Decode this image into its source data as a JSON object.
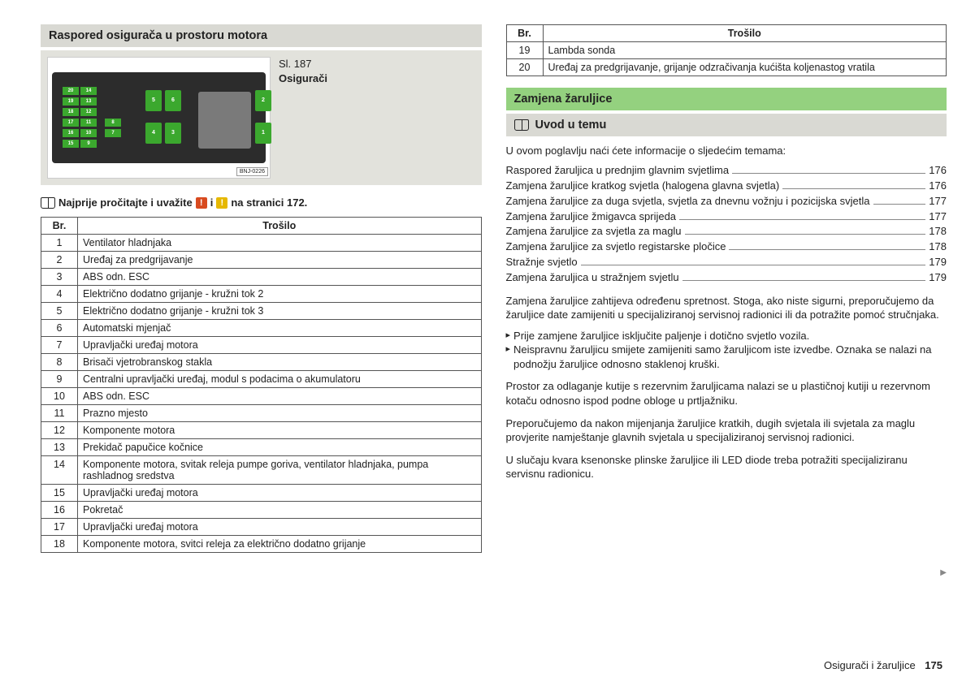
{
  "left": {
    "heading": "Raspored osigurača u prostoru motora",
    "figLabel": "Sl. 187",
    "figCaption": "Osigurači",
    "bnj": "BNJ-0226",
    "readFirst_a": "Najprije pročitajte i uvažite",
    "readFirst_b": "i",
    "readFirst_c": "na stranici 172.",
    "th_br": "Br.",
    "th_trosilo": "Trošilo",
    "rows": [
      {
        "n": "1",
        "t": "Ventilator hladnjaka"
      },
      {
        "n": "2",
        "t": "Uređaj za predgrijavanje"
      },
      {
        "n": "3",
        "t": "ABS odn. ESC"
      },
      {
        "n": "4",
        "t": "Električno dodatno grijanje - kružni tok 2"
      },
      {
        "n": "5",
        "t": "Električno dodatno grijanje - kružni tok 3"
      },
      {
        "n": "6",
        "t": "Automatski mjenjač"
      },
      {
        "n": "7",
        "t": "Upravljački uređaj motora"
      },
      {
        "n": "8",
        "t": "Brisači vjetrobranskog stakla"
      },
      {
        "n": "9",
        "t": "Centralni upravljački uređaj, modul s podacima o akumulatoru"
      },
      {
        "n": "10",
        "t": "ABS odn. ESC"
      },
      {
        "n": "11",
        "t": "Prazno mjesto"
      },
      {
        "n": "12",
        "t": "Komponente motora"
      },
      {
        "n": "13",
        "t": "Prekidač papučice kočnice"
      },
      {
        "n": "14",
        "t": "Komponente motora, svitak releja pumpe goriva, ventilator hladnjaka, pumpa rashladnog sredstva"
      },
      {
        "n": "15",
        "t": "Upravljački uređaj motora"
      },
      {
        "n": "16",
        "t": "Pokretač"
      },
      {
        "n": "17",
        "t": "Upravljački uređaj motora"
      },
      {
        "n": "18",
        "t": "Komponente motora, svitci releja za električno dodatno grijanje"
      }
    ],
    "fuse_numbers": [
      "20",
      "19",
      "18",
      "17",
      "16",
      "15",
      "14",
      "13",
      "12",
      "11",
      "10",
      "9",
      "8",
      "7",
      "5",
      "6",
      "4",
      "3",
      "2",
      "1"
    ]
  },
  "right": {
    "th_br": "Br.",
    "th_trosilo": "Trošilo",
    "rows": [
      {
        "n": "19",
        "t": "Lambda sonda"
      },
      {
        "n": "20",
        "t": "Uređaj za predgrijavanje, grijanje odzračivanja kućišta koljenastog vratila"
      }
    ],
    "heading": "Zamjena žaruljice",
    "sub": "Uvod u temu",
    "intro": "U ovom poglavlju naći ćete informacije o sljedećim temama:",
    "toc": [
      {
        "l": "Raspored žaruljica u prednjim glavnim svjetlima",
        "p": "176"
      },
      {
        "l": "Zamjena žaruljice kratkog svjetla (halogena glavna svjetla)",
        "p": "176"
      },
      {
        "l": "Zamjena žaruljice za duga svjetla, svjetla za dnevnu vožnju i pozicijska svjetla",
        "p": "177"
      },
      {
        "l": "Zamjena žaruljice žmigavca sprijeda",
        "p": "177"
      },
      {
        "l": "Zamjena žaruljice za svjetla za maglu",
        "p": "178"
      },
      {
        "l": "Zamjena žaruljice za svjetlo registarske pločice",
        "p": "178"
      },
      {
        "l": "Stražnje svjetlo",
        "p": "179"
      },
      {
        "l": "Zamjena žaruljica u stražnjem svjetlu",
        "p": "179"
      }
    ],
    "p1": "Zamjena žaruljice zahtijeva određenu spretnost. Stoga, ako niste sigurni, preporučujemo da žaruljice date zamijeniti u specijaliziranoj servisnoj radionici ili da potražite pomoć stručnjaka.",
    "b1": "Prije zamjene žaruljice isključite paljenje i dotično svjetlo vozila.",
    "b2": "Neispravnu žaruljicu smijete zamijeniti samo žaruljicom iste izvedbe. Oznaka se nalazi na podnožju žaruljice odnosno staklenoj kruški.",
    "p2": "Prostor za odlaganje kutije s rezervnim žaruljicama nalazi se u plastičnoj kutiji u rezervnom kotaču odnosno ispod podne obloge u prtljažniku.",
    "p3": "Preporučujemo da nakon mijenjanja žaruljice kratkih, dugih svjetala ili svjetala za maglu provjerite namještanje glavnih svjetala u specijaliziranoj servisnoj radionici.",
    "p4": "U slučaju kvara ksenonske plinske žaruljice ili LED diode treba potražiti specijaliziranu servisnu radionicu."
  },
  "footer": {
    "section": "Osigurači i žaruljice",
    "page": "175"
  }
}
